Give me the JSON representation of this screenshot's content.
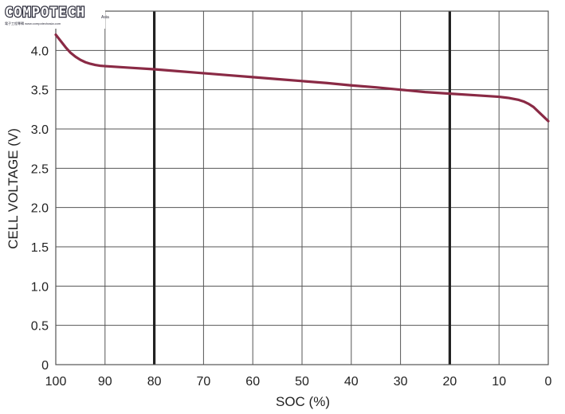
{
  "watermark": {
    "brand": "COMPOTECH",
    "suffix": "Asia",
    "subline": "電子工程專輯 www.compotechasia.com"
  },
  "chart_data": {
    "type": "line",
    "title": "",
    "xlabel": "SOC (%)",
    "ylabel": "CELL VOLTAGE (V)",
    "x_reversed": true,
    "xlim": [
      100,
      0
    ],
    "ylim": [
      0,
      4.5
    ],
    "x_ticks": [
      100,
      90,
      80,
      70,
      60,
      50,
      40,
      30,
      20,
      10,
      0
    ],
    "y_ticks": [
      0,
      0.5,
      1.0,
      1.5,
      2.0,
      2.5,
      3.0,
      3.5,
      4.0
    ],
    "x_tick_labels": [
      "100",
      "90",
      "80",
      "70",
      "60",
      "50",
      "40",
      "30",
      "20",
      "10",
      "0"
    ],
    "y_tick_labels": [
      "0",
      "0.5",
      "1.0",
      "1.5",
      "2.0",
      "2.5",
      "3.0",
      "3.5",
      "4.0"
    ],
    "grid": true,
    "highlight_x": [
      80,
      20
    ],
    "line_color": "#8a2a45",
    "grid_color": "#555555",
    "series": [
      {
        "x": [
          100,
          99,
          98,
          97,
          96,
          95,
          94,
          93,
          92,
          91,
          90,
          85,
          80,
          75,
          70,
          65,
          60,
          55,
          50,
          45,
          40,
          35,
          30,
          25,
          20,
          15,
          10,
          8,
          6,
          5,
          4,
          3,
          2,
          1,
          0
        ],
        "y": [
          4.2,
          4.12,
          4.04,
          3.97,
          3.92,
          3.88,
          3.85,
          3.83,
          3.815,
          3.805,
          3.8,
          3.78,
          3.76,
          3.735,
          3.71,
          3.685,
          3.66,
          3.635,
          3.61,
          3.585,
          3.555,
          3.53,
          3.5,
          3.47,
          3.45,
          3.43,
          3.41,
          3.395,
          3.37,
          3.35,
          3.32,
          3.28,
          3.22,
          3.16,
          3.1
        ]
      }
    ]
  }
}
